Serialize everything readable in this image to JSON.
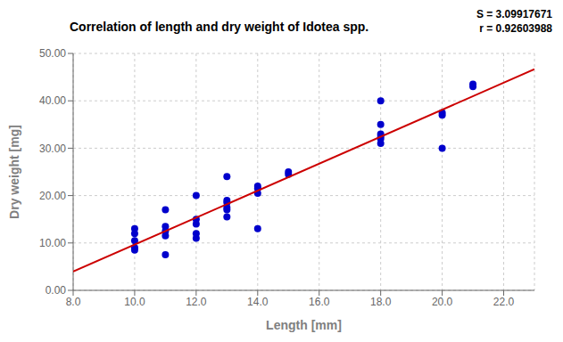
{
  "chart_data": {
    "type": "scatter",
    "title": "Correlation of length and dry weight of Idotea spp.",
    "annotations": [
      "S = 3.09917671",
      "r = 0.92603988"
    ],
    "x_label": "Length [mm]",
    "y_label": "Dry weight [mg]",
    "xlim": [
      8.0,
      23.0
    ],
    "ylim": [
      0.0,
      50.0
    ],
    "xticks": [
      {
        "value": 8,
        "label": "8.0"
      },
      {
        "value": 10,
        "label": "10.0"
      },
      {
        "value": 12,
        "label": "12.0"
      },
      {
        "value": 14,
        "label": "14.0"
      },
      {
        "value": 16,
        "label": "16.0"
      },
      {
        "value": 18,
        "label": "18.0"
      },
      {
        "value": 20,
        "label": "20.0"
      },
      {
        "value": 22,
        "label": "22.0"
      }
    ],
    "yticks": [
      {
        "value": 0,
        "label": "0.00"
      },
      {
        "value": 10,
        "label": "10.00"
      },
      {
        "value": 20,
        "label": "20.00"
      },
      {
        "value": 30,
        "label": "30.00"
      },
      {
        "value": 40,
        "label": "40.00"
      },
      {
        "value": 50,
        "label": "50.00"
      }
    ],
    "grid": true,
    "series": [
      {
        "type": "scatter",
        "marker": "o",
        "color": "#0000cc",
        "x": [
          10.0,
          10.0,
          10.0,
          10.0,
          10.0,
          11.0,
          11.0,
          11.0,
          11.0,
          11.0,
          12.0,
          12.0,
          12.0,
          12.0,
          12.0,
          13.0,
          13.0,
          13.0,
          13.0,
          13.0,
          13.0,
          14.0,
          14.0,
          14.0,
          14.0,
          15.0,
          15.0,
          18.0,
          18.0,
          18.0,
          18.0,
          18.0,
          18.0,
          20.0,
          20.0,
          20.0,
          21.0,
          21.0
        ],
        "values": [
          13.0,
          12.0,
          10.5,
          9.0,
          8.5,
          17.0,
          13.5,
          12.5,
          11.5,
          7.5,
          20.0,
          15.0,
          14.0,
          12.0,
          11.0,
          24.0,
          19.0,
          18.5,
          17.5,
          17.0,
          15.5,
          22.0,
          21.5,
          20.5,
          13.0,
          25.0,
          24.5,
          40.0,
          35.0,
          33.0,
          32.5,
          32.0,
          31.0,
          37.5,
          37.0,
          30.0,
          43.5,
          43.0
        ]
      },
      {
        "type": "line",
        "color": "#cc0000",
        "x": [
          8.0,
          23.0
        ],
        "values": [
          3.96172,
          46.66095
        ]
      }
    ]
  }
}
